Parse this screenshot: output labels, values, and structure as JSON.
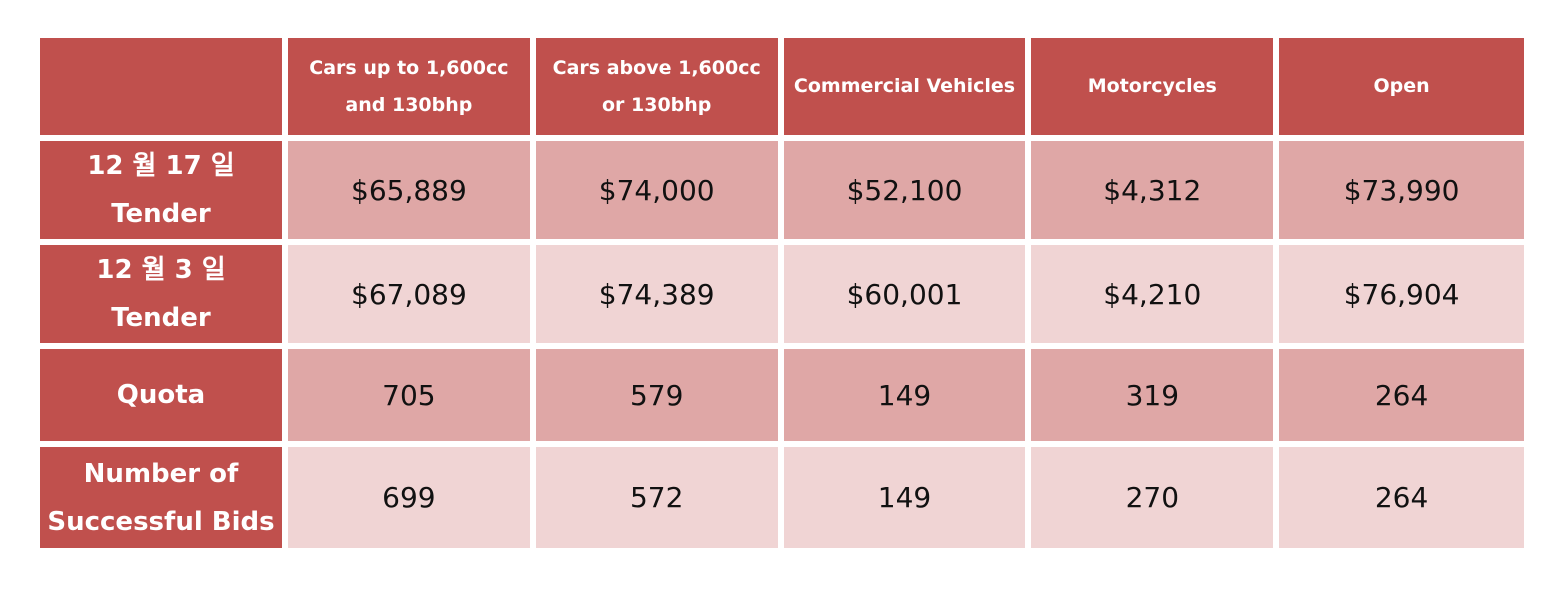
{
  "table": {
    "corner": "",
    "columns": [
      "Cars up to 1,600cc and 130bhp",
      "Cars above 1,600cc or 130bhp",
      "Commercial Vehicles",
      "Motorcycles",
      "Open"
    ],
    "rows": [
      {
        "label": "12 월 17 일 Tender",
        "values": [
          "$65,889",
          "$74,000",
          "$52,100",
          "$4,312",
          "$73,990"
        ]
      },
      {
        "label": "12 월 3 일 Tender",
        "values": [
          "$67,089",
          "$74,389",
          "$60,001",
          "$4,210",
          "$76,904"
        ]
      },
      {
        "label": "Quota",
        "values": [
          "705",
          "579",
          "149",
          "319",
          "264"
        ]
      },
      {
        "label": "Number of Successful Bids",
        "values": [
          "699",
          "572",
          "149",
          "270",
          "264"
        ]
      }
    ]
  },
  "colors": {
    "header_bg": "#c0504d",
    "band_dark": "#dfa7a6",
    "band_light": "#f0d4d4"
  }
}
